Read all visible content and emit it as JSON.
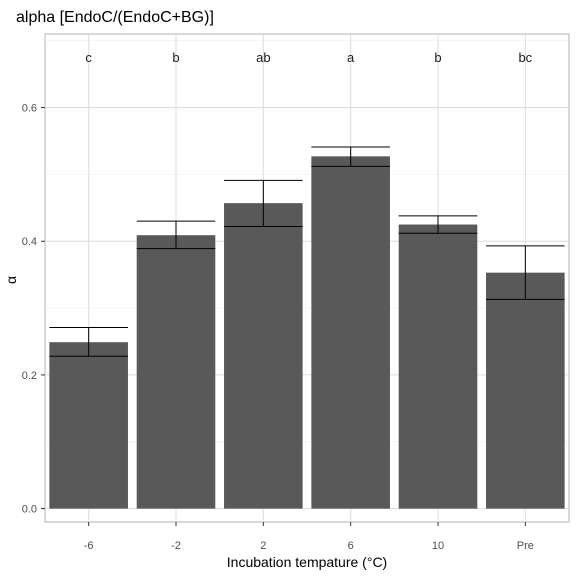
{
  "chart_data": {
    "type": "bar",
    "title": "alpha [EndoC/(EndoC+BG)]",
    "xlabel": "Incubation tempature (°C)",
    "ylabel": "α",
    "categories": [
      "-6",
      "-2",
      "2",
      "6",
      "10",
      "Pre"
    ],
    "values": [
      0.249,
      0.409,
      0.457,
      0.527,
      0.425,
      0.353
    ],
    "error_low": [
      0.228,
      0.389,
      0.422,
      0.512,
      0.412,
      0.313
    ],
    "error_high": [
      0.271,
      0.43,
      0.491,
      0.541,
      0.438,
      0.393
    ],
    "significance_labels": [
      "c",
      "b",
      "ab",
      "a",
      "b",
      "bc"
    ],
    "yticks": [
      "0.0",
      "0.2",
      "0.4",
      "0.6"
    ],
    "ylim": [
      -0.02,
      0.71
    ],
    "bar_color": "#595959",
    "grid": true
  }
}
